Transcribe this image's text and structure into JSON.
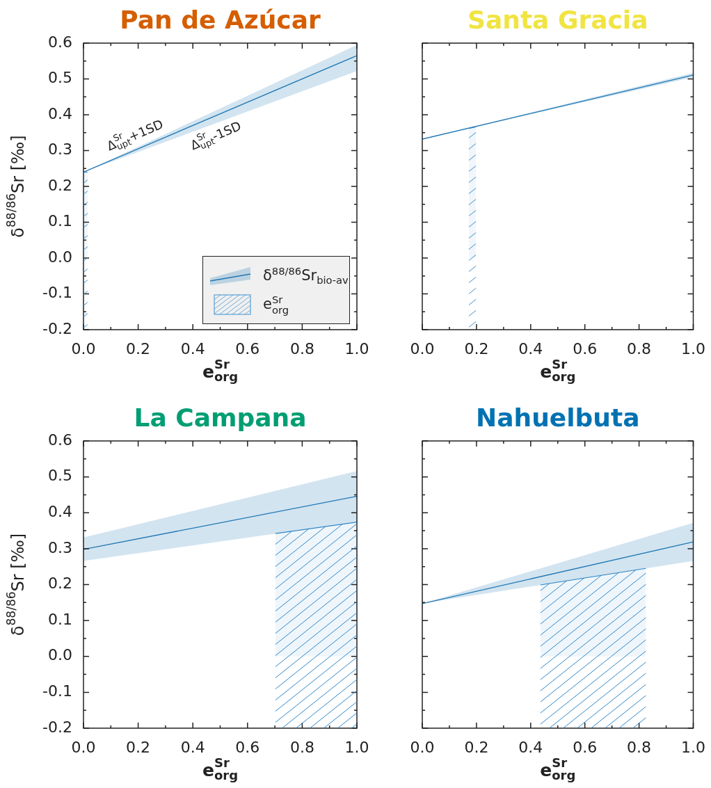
{
  "chart_data": [
    {
      "type": "line",
      "title": "Pan de Azúcar",
      "xlabel": "e$^{Sr}$$_{org}$",
      "ylabel": "δ$^{88/86}$Sr [‰]",
      "xlim": [
        0,
        1
      ],
      "ylim": [
        -0.2,
        0.6
      ],
      "xticks": [
        {
          "value": 0,
          "label": "0.0"
        },
        {
          "value": 0.1,
          "label": null
        },
        0.2,
        {
          "value": 0.3,
          "label": null
        },
        0.4,
        {
          "value": 0.5,
          "label": null
        },
        0.6,
        {
          "value": 0.7,
          "label": null
        },
        0.8,
        {
          "value": 0.9,
          "label": null
        },
        {
          "value": 1,
          "label": "1.0"
        }
      ],
      "yticks": [
        -0.2,
        {
          "value": -0.15,
          "label": null
        },
        -0.1,
        {
          "value": -0.05,
          "label": null
        },
        {
          "value": 0,
          "label": "0.0"
        },
        {
          "value": 0.05,
          "label": null
        },
        0.1,
        {
          "value": 0.15,
          "label": null
        },
        0.2,
        {
          "value": 0.25,
          "label": null
        },
        0.3,
        {
          "value": 0.35,
          "label": null
        },
        0.4,
        {
          "value": 0.45,
          "label": null
        },
        0.5,
        {
          "value": 0.55,
          "label": null
        },
        0.6
      ],
      "grid": false,
      "legend": "bottom right",
      "series": [
        {
          "name": "δ$^{88/86}$Sr$_{bio-av}$",
          "color": "#1f77b4",
          "x": [
            0,
            1
          ],
          "values": [
            0.24,
            0.565
          ],
          "lower": [
            0.24,
            0.522
          ],
          "upper": [
            0.24,
            0.595
          ]
        },
        {
          "name": "e$^{Sr}$$_{org}$",
          "type": "area",
          "color": "#3a8fd0",
          "x": [
            0,
            0.015
          ],
          "values": [
            0.24,
            0.24
          ]
        }
      ],
      "annotations": [
        "Δ$^{Sr}$$_{upt}$+1SD",
        "Δ$^{Sr}$$_{upt}$-1SD"
      ]
    },
    {
      "type": "line",
      "title": "Santa Gracia",
      "xlabel": "e$^{Sr}$$_{org}$",
      "xlim": [
        0,
        1
      ],
      "ylim": [
        -0.2,
        0.6
      ],
      "xticks": [
        {
          "value": 0,
          "label": "0.0"
        },
        {
          "value": 0.1,
          "label": null
        },
        0.2,
        {
          "value": 0.3,
          "label": null
        },
        0.4,
        {
          "value": 0.5,
          "label": null
        },
        0.6,
        {
          "value": 0.7,
          "label": null
        },
        0.8,
        {
          "value": 0.9,
          "label": null
        },
        {
          "value": 1,
          "label": "1.0"
        }
      ],
      "yticks": [
        -0.2,
        {
          "value": -0.15,
          "label": null
        },
        -0.1,
        {
          "value": -0.05,
          "label": null
        },
        0,
        {
          "value": 0.05,
          "label": null
        },
        0.1,
        {
          "value": 0.15,
          "label": null
        },
        0.2,
        {
          "value": 0.25,
          "label": null
        },
        0.3,
        {
          "value": 0.35,
          "label": null
        },
        0.4,
        {
          "value": 0.45,
          "label": null
        },
        0.5,
        {
          "value": 0.55,
          "label": null
        },
        0.6
      ],
      "grid": false,
      "tick_labels": "x",
      "series": [
        {
          "color": "#1f77b4",
          "x": [
            0,
            1
          ],
          "values": [
            0.332,
            0.511
          ],
          "lower": [
            0.332,
            0.505
          ],
          "upper": [
            0.332,
            0.517
          ]
        },
        {
          "type": "area",
          "color": "#3a8fd0",
          "x": [
            0.172,
            0.198
          ],
          "values": [
            0.362,
            0.366
          ]
        }
      ]
    },
    {
      "type": "line",
      "title": "La Campana",
      "xlabel": "e$^{Sr}$$_{org}$",
      "ylabel": "δ$^{88/86}$Sr [‰]",
      "xlim": [
        0,
        1
      ],
      "ylim": [
        -0.2,
        0.6
      ],
      "xticks": [
        {
          "value": 0,
          "label": "0.0"
        },
        {
          "value": 0.1,
          "label": null
        },
        0.2,
        {
          "value": 0.3,
          "label": null
        },
        0.4,
        {
          "value": 0.5,
          "label": null
        },
        0.6,
        {
          "value": 0.7,
          "label": null
        },
        0.8,
        {
          "value": 0.9,
          "label": null
        },
        {
          "value": 1,
          "label": "1.0"
        }
      ],
      "yticks": [
        -0.2,
        {
          "value": -0.15,
          "label": null
        },
        -0.1,
        {
          "value": -0.05,
          "label": null
        },
        {
          "value": 0,
          "label": "0.0"
        },
        {
          "value": 0.05,
          "label": null
        },
        0.1,
        {
          "value": 0.15,
          "label": null
        },
        0.2,
        {
          "value": 0.25,
          "label": null
        },
        0.3,
        {
          "value": 0.35,
          "label": null
        },
        0.4,
        {
          "value": 0.45,
          "label": null
        },
        0.5,
        {
          "value": 0.55,
          "label": null
        },
        0.6
      ],
      "grid": false,
      "series": [
        {
          "color": "#1f77b4",
          "x": [
            0,
            1
          ],
          "values": [
            0.298,
            0.446
          ],
          "lower": [
            0.266,
            0.374
          ],
          "upper": [
            0.331,
            0.516
          ]
        },
        {
          "type": "area",
          "color": "#2e86c8",
          "x": [
            0.702,
            1
          ],
          "values": [
            0.342,
            0.374
          ]
        }
      ]
    },
    {
      "type": "line",
      "title": "Nahuelbuta",
      "xlabel": "e$^{Sr}$$_{org}$",
      "xlim": [
        0,
        1
      ],
      "ylim": [
        -0.2,
        0.6
      ],
      "xticks": [
        {
          "value": 0,
          "label": "0.0"
        },
        {
          "value": 0.1,
          "label": null
        },
        0.2,
        {
          "value": 0.3,
          "label": null
        },
        0.4,
        {
          "value": 0.5,
          "label": null
        },
        0.6,
        {
          "value": 0.7,
          "label": null
        },
        0.8,
        {
          "value": 0.9,
          "label": null
        },
        {
          "value": 1,
          "label": "1.0"
        }
      ],
      "yticks": [
        -0.2,
        {
          "value": -0.15,
          "label": null
        },
        -0.1,
        {
          "value": -0.05,
          "label": null
        },
        0,
        {
          "value": 0.05,
          "label": null
        },
        0.1,
        {
          "value": 0.15,
          "label": null
        },
        0.2,
        {
          "value": 0.25,
          "label": null
        },
        0.3,
        {
          "value": 0.35,
          "label": null
        },
        0.4,
        {
          "value": 0.45,
          "label": null
        },
        0.5,
        {
          "value": 0.55,
          "label": null
        },
        0.6
      ],
      "grid": false,
      "tick_labels": "x",
      "series": [
        {
          "color": "#1f77b4",
          "x": [
            0,
            1
          ],
          "values": [
            0.147,
            0.319
          ],
          "lower": [
            0.147,
            0.266
          ],
          "upper": [
            0.147,
            0.372
          ]
        },
        {
          "type": "area",
          "color": "#2e86c8",
          "x": [
            0.436,
            0.825
          ],
          "values": [
            0.199,
            0.245
          ]
        }
      ]
    }
  ]
}
